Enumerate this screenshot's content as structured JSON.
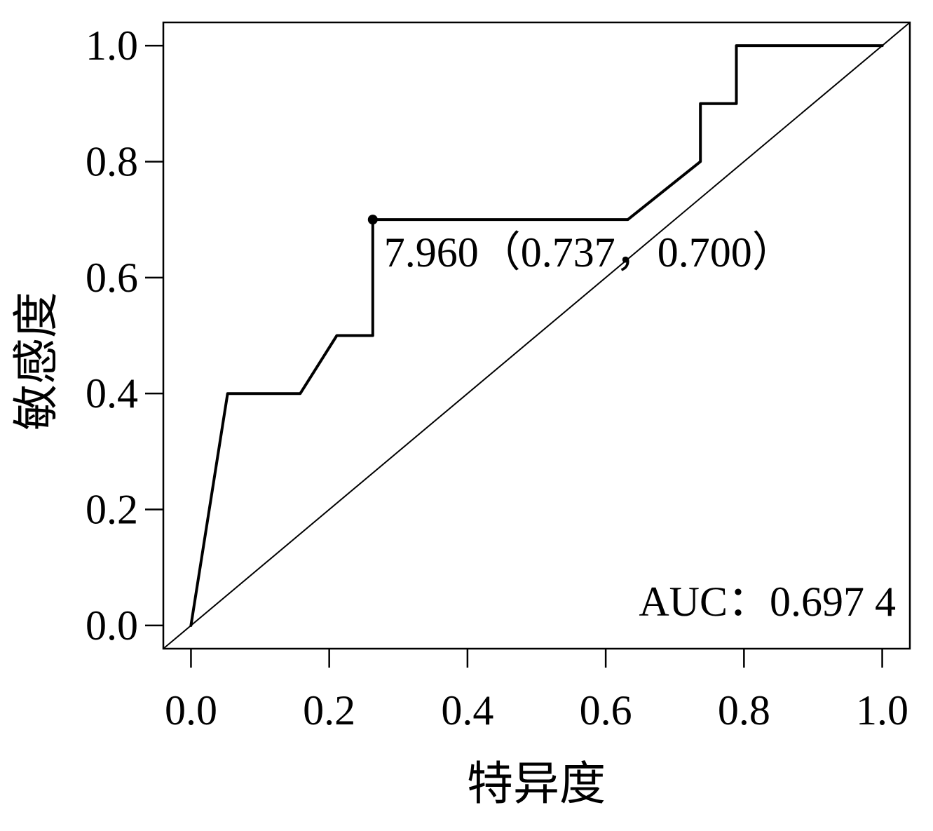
{
  "chart_data": {
    "type": "line",
    "xlabel": "特异度",
    "ylabel": "敏感度",
    "xlim": [
      -0.04,
      1.04
    ],
    "ylim": [
      -0.04,
      1.04
    ],
    "x_ticks": [
      "0.0",
      "0.2",
      "0.4",
      "0.6",
      "0.8",
      "1.0"
    ],
    "y_ticks": [
      "0.0",
      "0.2",
      "0.4",
      "0.6",
      "0.8",
      "1.0"
    ],
    "grid": false,
    "series": [
      {
        "x": [
          0,
          0.053,
          0.158,
          0.211,
          0.263,
          0.263,
          0.632,
          0.737,
          0.737,
          0.789,
          0.789,
          1.0
        ],
        "y": [
          0,
          0.4,
          0.4,
          0.5,
          0.5,
          0.7,
          0.7,
          0.8,
          0.9,
          0.9,
          1.0,
          1.0
        ],
        "color": "#000000"
      }
    ],
    "reference_line": {
      "slope": 1,
      "intercept": 0,
      "color": "#000000"
    },
    "annotations": [
      {
        "x": 0.263,
        "y": 0.7,
        "text": "7.960（0.737，0.700）"
      }
    ],
    "auc_label": {
      "text": "AUC：0.697 4",
      "position": "bottom-right"
    }
  }
}
